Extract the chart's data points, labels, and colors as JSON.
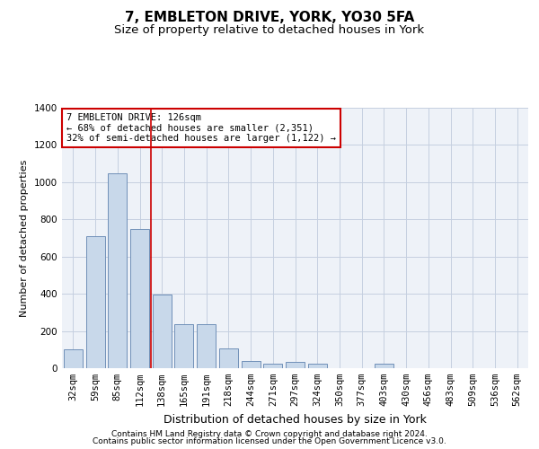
{
  "title": "7, EMBLETON DRIVE, YORK, YO30 5FA",
  "subtitle": "Size of property relative to detached houses in York",
  "xlabel": "Distribution of detached houses by size in York",
  "ylabel": "Number of detached properties",
  "footer_line1": "Contains HM Land Registry data © Crown copyright and database right 2024.",
  "footer_line2": "Contains public sector information licensed under the Open Government Licence v3.0.",
  "categories": [
    "32sqm",
    "59sqm",
    "85sqm",
    "112sqm",
    "138sqm",
    "165sqm",
    "191sqm",
    "218sqm",
    "244sqm",
    "271sqm",
    "297sqm",
    "324sqm",
    "350sqm",
    "377sqm",
    "403sqm",
    "430sqm",
    "456sqm",
    "483sqm",
    "509sqm",
    "536sqm",
    "562sqm"
  ],
  "values": [
    100,
    710,
    1050,
    750,
    395,
    235,
    235,
    105,
    40,
    25,
    35,
    25,
    0,
    0,
    25,
    0,
    0,
    0,
    0,
    0,
    0
  ],
  "bar_color": "#c8d8ea",
  "bar_edge_color": "#7090b8",
  "grid_color": "#c5cfe0",
  "background_color": "#eef2f8",
  "annotation_box_text": "7 EMBLETON DRIVE: 126sqm\n← 68% of detached houses are smaller (2,351)\n32% of semi-detached houses are larger (1,122) →",
  "annotation_box_color": "#cc0000",
  "vline_x_index": 3.5,
  "vline_color": "#cc0000",
  "ylim": [
    0,
    1400
  ],
  "yticks": [
    0,
    200,
    400,
    600,
    800,
    1000,
    1200,
    1400
  ],
  "title_fontsize": 11,
  "subtitle_fontsize": 9.5,
  "xlabel_fontsize": 9,
  "ylabel_fontsize": 8,
  "tick_fontsize": 7.5,
  "annotation_fontsize": 7.5,
  "footer_fontsize": 6.5
}
